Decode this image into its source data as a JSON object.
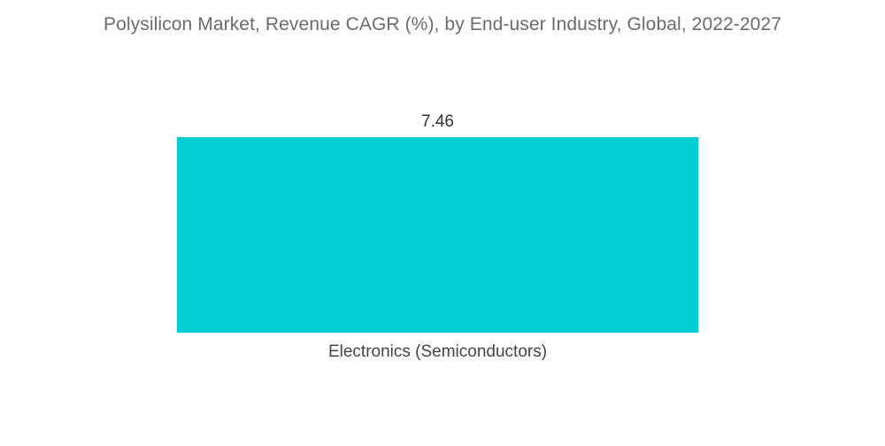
{
  "chart_data": {
    "type": "bar",
    "title": "Polysilicon Market, Revenue CAGR (%), by End-user Industry, Global, 2022-2027",
    "categories": [
      "Electronics (Semiconductors)"
    ],
    "values": [
      7.46
    ],
    "value_labels": [
      "7.46"
    ],
    "xlabel": "",
    "ylabel": "",
    "ylim": [
      0,
      7.46
    ],
    "grid": false,
    "legend": "none",
    "bar_color": "#00ced1"
  }
}
